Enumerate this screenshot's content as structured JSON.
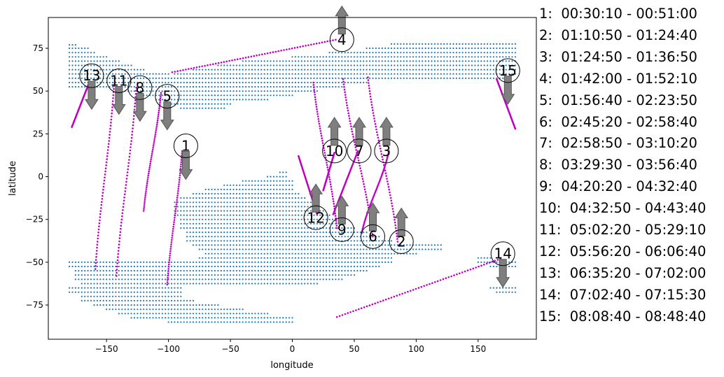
{
  "chart_data": {
    "type": "scatter",
    "title": "",
    "xlabel": "longitude",
    "ylabel": "latitude",
    "xlim": [
      -197,
      197
    ],
    "ylim": [
      -95,
      93
    ],
    "xticks": [
      -150,
      -100,
      -50,
      0,
      50,
      100,
      150
    ],
    "yticks": [
      -75,
      -50,
      -25,
      0,
      25,
      50,
      75
    ],
    "grid": false,
    "colors": {
      "grid_points": "#1f77b4",
      "tracks": "#c000c0",
      "arrow_fill": "#7f7f7f",
      "arrow_edge": "#555555"
    },
    "coverage_regions": [
      {
        "name": "northern region",
        "rows": [
          [
            77,
            -180,
            -175
          ],
          [
            75,
            -180,
            -165
          ],
          [
            72.5,
            -180,
            -160
          ],
          [
            70,
            -180,
            -150
          ],
          [
            67.5,
            -180,
            -140
          ],
          [
            65,
            -180,
            -130
          ],
          [
            62.5,
            -180,
            -120
          ],
          [
            60,
            -180,
            -100
          ],
          [
            57.5,
            -180,
            -90
          ],
          [
            55,
            -180,
            -80
          ],
          [
            52.5,
            -180,
            -80
          ],
          [
            50,
            -140,
            -70
          ],
          [
            47.5,
            -120,
            -60
          ],
          [
            45,
            -110,
            -55
          ],
          [
            42.5,
            -100,
            -50
          ],
          [
            40,
            -90,
            -55
          ],
          [
            77.5,
            80,
            180
          ],
          [
            75,
            60,
            180
          ],
          [
            72.5,
            30,
            180
          ],
          [
            70,
            0,
            180
          ],
          [
            67.5,
            -40,
            180
          ],
          [
            65,
            -60,
            180
          ],
          [
            62.5,
            -80,
            180
          ],
          [
            60,
            -95,
            180
          ],
          [
            57.5,
            -90,
            175
          ],
          [
            55,
            -85,
            60
          ],
          [
            52.5,
            -80,
            40
          ],
          [
            50,
            -70,
            20
          ],
          [
            47.5,
            -65,
            0
          ],
          [
            45,
            -60,
            -20
          ]
        ]
      },
      {
        "name": "southern region",
        "rows": [
          [
            2.5,
            -10,
            -5
          ],
          [
            0,
            -20,
            -5
          ],
          [
            -2.5,
            -40,
            0
          ],
          [
            -5,
            -55,
            0
          ],
          [
            -7.5,
            -70,
            0
          ],
          [
            -10,
            -80,
            5
          ],
          [
            -12.5,
            -90,
            10
          ],
          [
            -15,
            -95,
            15
          ],
          [
            -17.5,
            -95,
            20
          ],
          [
            -20,
            -95,
            25
          ],
          [
            -22.5,
            -95,
            30
          ],
          [
            -25,
            -90,
            35
          ],
          [
            -27.5,
            -90,
            40
          ],
          [
            -30,
            -90,
            50
          ],
          [
            -32.5,
            -85,
            60
          ],
          [
            -35,
            -85,
            70
          ],
          [
            -37.5,
            -85,
            80
          ],
          [
            -40,
            -80,
            120
          ],
          [
            -42.5,
            -75,
            120
          ],
          [
            -45,
            -70,
            100
          ],
          [
            -47.5,
            -75,
            80
          ],
          [
            -50,
            -180,
            80
          ],
          [
            -52.5,
            -180,
            70
          ],
          [
            -55,
            -175,
            60
          ],
          [
            -57.5,
            -175,
            50
          ],
          [
            -60,
            -175,
            40
          ],
          [
            -62.5,
            -170,
            20
          ],
          [
            -65,
            -180,
            -90
          ],
          [
            -65,
            160,
            180
          ],
          [
            -67.5,
            -180,
            -90
          ],
          [
            -67.5,
            165,
            180
          ],
          [
            -70,
            -170,
            -90
          ],
          [
            -72.5,
            -170,
            -80
          ],
          [
            -75,
            -160,
            -60
          ],
          [
            -77.5,
            -150,
            -40
          ],
          [
            -80,
            -140,
            -20
          ],
          [
            -82.5,
            -130,
            0
          ],
          [
            -85,
            -100,
            0
          ],
          [
            -50,
            150,
            180
          ],
          [
            -52.5,
            160,
            180
          ],
          [
            -47.5,
            150,
            160
          ]
        ]
      }
    ],
    "tracks": [
      {
        "label": "1",
        "x": [
          -89,
          -101
        ],
        "y": [
          15,
          -63
        ],
        "marker_x": -86,
        "marker_y": 18,
        "arrow": "down"
      },
      {
        "label": "2",
        "x": [
          85,
          61
        ],
        "y": [
          -38,
          58
        ],
        "marker_x": 88,
        "marker_y": -38,
        "arrow": "up"
      },
      {
        "label": "3",
        "x": [
          78,
          56
        ],
        "y": [
          15,
          -33
        ],
        "marker_x": 76,
        "marker_y": 15,
        "arrow": "up"
      },
      {
        "label": "4",
        "x": [
          -97,
          35
        ],
        "y": [
          61,
          80
        ],
        "marker_x": 40,
        "marker_y": 80,
        "arrow": "up"
      },
      {
        "label": "5",
        "x": [
          -106,
          -120
        ],
        "y": [
          49,
          -20
        ],
        "marker_x": -101,
        "marker_y": 47,
        "arrow": "down"
      },
      {
        "label": "6",
        "x": [
          65,
          41
        ],
        "y": [
          -35,
          57
        ],
        "marker_x": 65,
        "marker_y": -35,
        "arrow": "up"
      },
      {
        "label": "7",
        "x": [
          53,
          33
        ],
        "y": [
          15,
          -22
        ],
        "marker_x": 54,
        "marker_y": 15,
        "arrow": "up"
      },
      {
        "label": "8",
        "x": [
          -126,
          -142
        ],
        "y": [
          52,
          -58
        ],
        "marker_x": -123,
        "marker_y": 52,
        "arrow": "down"
      },
      {
        "label": "9",
        "x": [
          36,
          17
        ],
        "y": [
          -30,
          55
        ],
        "marker_x": 40,
        "marker_y": -31,
        "arrow": "up"
      },
      {
        "label": "10",
        "x": [
          34,
          25
        ],
        "y": [
          14,
          -8
        ],
        "marker_x": 34,
        "marker_y": 15,
        "arrow": "up"
      },
      {
        "label": "11",
        "x": [
          -144,
          -159
        ],
        "y": [
          53,
          -54
        ],
        "marker_x": -140,
        "marker_y": 56,
        "arrow": "down"
      },
      {
        "label": "12",
        "x": [
          5,
          20
        ],
        "y": [
          12,
          -22
        ],
        "marker_x": 19,
        "marker_y": -24,
        "arrow": "up"
      },
      {
        "label": "13",
        "x": [
          -164,
          -178
        ],
        "y": [
          55,
          29
        ],
        "marker_x": -162,
        "marker_y": 59,
        "arrow": "down"
      },
      {
        "label": "14",
        "x": [
          168,
          36
        ],
        "y": [
          -48,
          -82
        ],
        "marker_x": 170,
        "marker_y": -45,
        "arrow": "down"
      },
      {
        "label": "15",
        "x": [
          165,
          180
        ],
        "y": [
          57,
          28
        ],
        "marker_x": 174,
        "marker_y": 62,
        "arrow": "down"
      }
    ]
  },
  "legend": [
    {
      "num": "1:",
      "range": "00:30:10 - 00:51:00"
    },
    {
      "num": "2:",
      "range": "01:10:50 - 01:24:40"
    },
    {
      "num": "3:",
      "range": "01:24:50 - 01:36:50"
    },
    {
      "num": "4:",
      "range": "01:42:00 - 01:52:10"
    },
    {
      "num": "5:",
      "range": "01:56:40 - 02:23:50"
    },
    {
      "num": "6:",
      "range": "02:45:20 - 02:58:40"
    },
    {
      "num": "7:",
      "range": "02:58:50 - 03:10:20"
    },
    {
      "num": "8:",
      "range": "03:29:30 - 03:56:40"
    },
    {
      "num": "9:",
      "range": "04:20:20 - 04:32:40"
    },
    {
      "num": "10:",
      "range": "04:32:50 - 04:43:40"
    },
    {
      "num": "11:",
      "range": "05:02:20 - 05:29:10"
    },
    {
      "num": "12:",
      "range": "05:56:20 - 06:06:40"
    },
    {
      "num": "13:",
      "range": "06:35:20 - 07:02:00"
    },
    {
      "num": "14:",
      "range": "07:02:40 - 07:15:30"
    },
    {
      "num": "15:",
      "range": "08:08:40 - 08:48:40"
    }
  ]
}
